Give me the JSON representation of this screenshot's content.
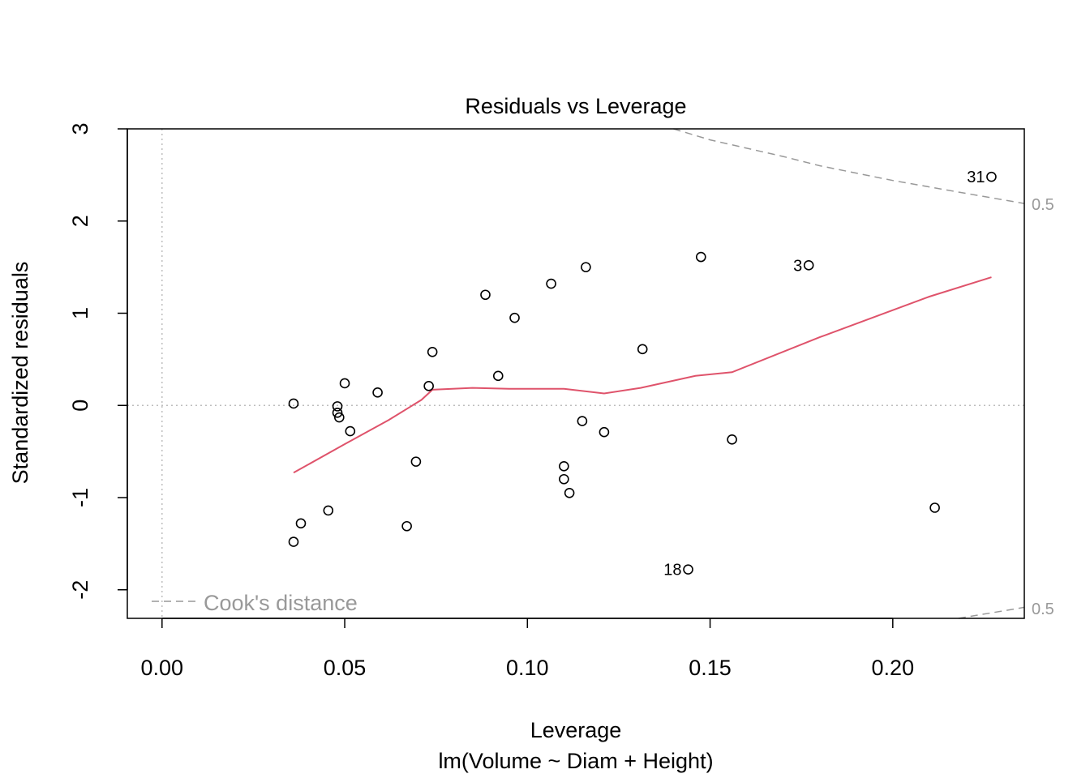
{
  "chart_data": {
    "type": "scatter",
    "title": "Residuals vs Leverage",
    "xlabel": "Leverage",
    "subtitle": "lm(Volume ~ Diam + Height)",
    "ylabel": "Standardized residuals",
    "xlim": [
      -0.0095,
      0.236
    ],
    "ylim": [
      -2.31,
      3.0
    ],
    "xticks": [
      {
        "value": 0.0,
        "label": "0.00"
      },
      {
        "value": 0.05,
        "label": "0.05"
      },
      {
        "value": 0.1,
        "label": "0.10"
      },
      {
        "value": 0.15,
        "label": "0.15"
      },
      {
        "value": 0.2,
        "label": "0.20"
      }
    ],
    "yticks": [
      {
        "value": 3,
        "label": "3"
      },
      {
        "value": 2,
        "label": "2"
      },
      {
        "value": 1,
        "label": "1"
      },
      {
        "value": 0,
        "label": "0"
      },
      {
        "value": -1,
        "label": "-1"
      },
      {
        "value": -2,
        "label": "-2"
      }
    ],
    "points": [
      {
        "x": 0.036,
        "y": 0.02
      },
      {
        "x": 0.036,
        "y": -1.48
      },
      {
        "x": 0.038,
        "y": -1.28
      },
      {
        "x": 0.0455,
        "y": -1.14
      },
      {
        "x": 0.048,
        "y": -0.01
      },
      {
        "x": 0.048,
        "y": -0.08
      },
      {
        "x": 0.0485,
        "y": -0.13
      },
      {
        "x": 0.05,
        "y": 0.24
      },
      {
        "x": 0.0515,
        "y": -0.28
      },
      {
        "x": 0.059,
        "y": 0.14
      },
      {
        "x": 0.067,
        "y": -1.31
      },
      {
        "x": 0.0695,
        "y": -0.61
      },
      {
        "x": 0.073,
        "y": 0.21
      },
      {
        "x": 0.074,
        "y": 0.58
      },
      {
        "x": 0.0885,
        "y": 1.2
      },
      {
        "x": 0.092,
        "y": 0.32
      },
      {
        "x": 0.0965,
        "y": 0.95
      },
      {
        "x": 0.1065,
        "y": 1.32
      },
      {
        "x": 0.11,
        "y": -0.66
      },
      {
        "x": 0.11,
        "y": -0.8
      },
      {
        "x": 0.1115,
        "y": -0.95
      },
      {
        "x": 0.115,
        "y": -0.17
      },
      {
        "x": 0.116,
        "y": 1.5
      },
      {
        "x": 0.121,
        "y": -0.29
      },
      {
        "x": 0.1315,
        "y": 0.61
      },
      {
        "x": 0.144,
        "y": -1.78,
        "label": "18"
      },
      {
        "x": 0.1475,
        "y": 1.61
      },
      {
        "x": 0.156,
        "y": -0.37
      },
      {
        "x": 0.177,
        "y": 1.52,
        "label": "3"
      },
      {
        "x": 0.2115,
        "y": -1.11
      },
      {
        "x": 0.227,
        "y": 2.48,
        "label": "31"
      }
    ],
    "smooth_line": {
      "color": "#DF536B",
      "points": [
        {
          "x": 0.036,
          "y": -0.73
        },
        {
          "x": 0.05,
          "y": -0.42
        },
        {
          "x": 0.062,
          "y": -0.16
        },
        {
          "x": 0.071,
          "y": 0.06
        },
        {
          "x": 0.074,
          "y": 0.17
        },
        {
          "x": 0.085,
          "y": 0.19
        },
        {
          "x": 0.095,
          "y": 0.18
        },
        {
          "x": 0.11,
          "y": 0.18
        },
        {
          "x": 0.121,
          "y": 0.13
        },
        {
          "x": 0.131,
          "y": 0.19
        },
        {
          "x": 0.146,
          "y": 0.32
        },
        {
          "x": 0.156,
          "y": 0.36
        },
        {
          "x": 0.18,
          "y": 0.74
        },
        {
          "x": 0.21,
          "y": 1.18
        },
        {
          "x": 0.227,
          "y": 1.39
        }
      ]
    },
    "cooks_distance_upper": [
      {
        "x": 0.14,
        "y": 3.0
      },
      {
        "x": 0.15,
        "y": 2.88
      },
      {
        "x": 0.17,
        "y": 2.7
      },
      {
        "x": 0.18,
        "y": 2.6
      },
      {
        "x": 0.2,
        "y": 2.44
      },
      {
        "x": 0.22,
        "y": 2.3
      },
      {
        "x": 0.236,
        "y": 2.19
      }
    ],
    "cooks_distance_lower": [
      {
        "x": 0.218,
        "y": -2.31
      },
      {
        "x": 0.227,
        "y": -2.25
      },
      {
        "x": 0.236,
        "y": -2.19
      }
    ],
    "contour_label_upper": "0.5",
    "contour_label_lower": "0.5",
    "legend": {
      "label": "Cook's distance",
      "placement": "bottom-left"
    },
    "colors": {
      "points": "#000000",
      "smooth": "#DF536B",
      "cook": "#999999",
      "reference": "#BEBEBE",
      "axis": "#000000"
    }
  }
}
